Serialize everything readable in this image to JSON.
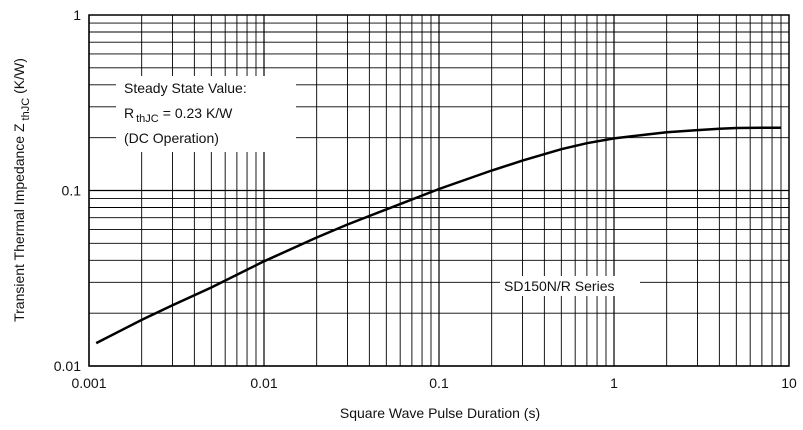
{
  "chart_data": {
    "type": "line",
    "xscale": "log",
    "yscale": "log",
    "xlim": [
      0.001,
      10
    ],
    "ylim": [
      0.01,
      1
    ],
    "xlabel": "Square Wave Pulse Duration (s)",
    "ylabel_main": "Transient Thermal Impedance Z",
    "ylabel_sub": "thJC",
    "ylabel_unit": "(K/W)",
    "xticks": [
      "0.001",
      "0.01",
      "0.1",
      "1",
      "10"
    ],
    "yticks": [
      "0.01",
      "0.1",
      "1"
    ],
    "grid": true,
    "annotations": {
      "steady_title": "Steady State Value:",
      "r_symbol": "R",
      "r_subscript": "thJC",
      "r_value": "= 0.23 K/W",
      "dc_operation": "(DC Operation)",
      "series_label": "SD150N/R Series"
    },
    "series": [
      {
        "x": [
          0.0011,
          0.002,
          0.003,
          0.005,
          0.01,
          0.02,
          0.03,
          0.05,
          0.1,
          0.2,
          0.3,
          0.5,
          0.7,
          1,
          1.5,
          2,
          3,
          4,
          5,
          7,
          9
        ],
        "y": [
          0.0135,
          0.0183,
          0.0222,
          0.028,
          0.0395,
          0.054,
          0.064,
          0.078,
          0.102,
          0.13,
          0.148,
          0.172,
          0.186,
          0.198,
          0.208,
          0.215,
          0.221,
          0.225,
          0.227,
          0.228,
          0.228
        ]
      }
    ]
  }
}
